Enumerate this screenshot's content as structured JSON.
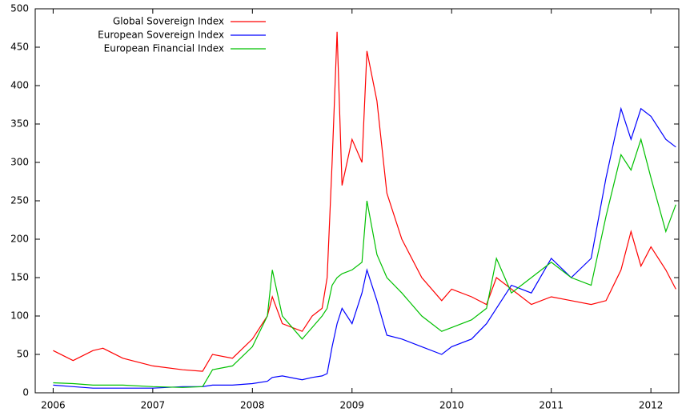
{
  "chart_data": {
    "type": "line",
    "x": [
      2006.0,
      2006.2,
      2006.4,
      2006.5,
      2006.7,
      2007.0,
      2007.3,
      2007.5,
      2007.6,
      2007.8,
      2008.0,
      2008.15,
      2008.2,
      2008.3,
      2008.5,
      2008.6,
      2008.7,
      2008.75,
      2008.8,
      2008.85,
      2008.9,
      2009.0,
      2009.1,
      2009.15,
      2009.25,
      2009.35,
      2009.5,
      2009.7,
      2009.9,
      2010.0,
      2010.2,
      2010.35,
      2010.45,
      2010.6,
      2010.8,
      2011.0,
      2011.2,
      2011.4,
      2011.55,
      2011.7,
      2011.8,
      2011.9,
      2012.0,
      2012.15,
      2012.25
    ],
    "series": [
      {
        "name": "Global Sovereign Index",
        "color": "#ff0000",
        "values": [
          55,
          42,
          55,
          58,
          45,
          35,
          30,
          28,
          50,
          45,
          70,
          100,
          125,
          90,
          80,
          100,
          110,
          150,
          300,
          470,
          270,
          330,
          300,
          445,
          380,
          260,
          200,
          150,
          120,
          135,
          125,
          115,
          150,
          135,
          115,
          125,
          120,
          115,
          120,
          160,
          210,
          165,
          190,
          160,
          135
        ]
      },
      {
        "name": "European Sovereign Index",
        "color": "#0000ff",
        "values": [
          10,
          8,
          6,
          6,
          6,
          6,
          8,
          8,
          10,
          10,
          12,
          15,
          20,
          22,
          17,
          20,
          22,
          25,
          60,
          90,
          110,
          90,
          130,
          160,
          120,
          75,
          70,
          60,
          50,
          60,
          70,
          90,
          110,
          140,
          130,
          175,
          150,
          175,
          280,
          370,
          330,
          370,
          360,
          330,
          320
        ]
      },
      {
        "name": "European Financial Index",
        "color": "#00c000",
        "values": [
          13,
          12,
          10,
          10,
          10,
          8,
          7,
          8,
          30,
          35,
          60,
          100,
          160,
          100,
          70,
          85,
          100,
          110,
          140,
          150,
          155,
          160,
          170,
          250,
          180,
          150,
          130,
          100,
          80,
          85,
          95,
          110,
          175,
          130,
          150,
          170,
          150,
          140,
          230,
          310,
          290,
          330,
          280,
          210,
          245
        ]
      }
    ],
    "xlim": [
      2005.82,
      2012.28
    ],
    "xticks": [
      2006,
      2007,
      2008,
      2009,
      2010,
      2011,
      2012
    ],
    "ylim": [
      0,
      500
    ],
    "yticks": [
      0,
      50,
      100,
      150,
      200,
      250,
      300,
      350,
      400,
      450,
      500
    ],
    "legend": "top-left"
  }
}
